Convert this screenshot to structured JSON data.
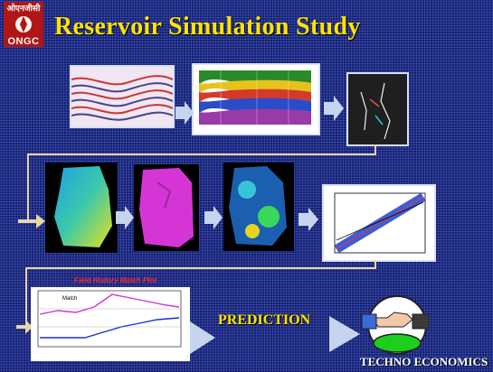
{
  "slide": {
    "logo_hindi": "ओएनजीसी",
    "logo_text": "ONGC",
    "title": "Reservoir  Simulation Study",
    "prediction_label": "PREDICTION",
    "techno_label": "TECHNO ECONOMICS",
    "history_match_title": "Field History Match Plot",
    "history_match_legend": "Match",
    "colors": {
      "background": "#1a2a8c",
      "title": "#ffe400",
      "arrow": "#c6d4f0",
      "connector": "#e8d6a6"
    },
    "icons": [
      "arrow-right-icon",
      "handshake-icon",
      "ongc-logo-icon"
    ]
  }
}
